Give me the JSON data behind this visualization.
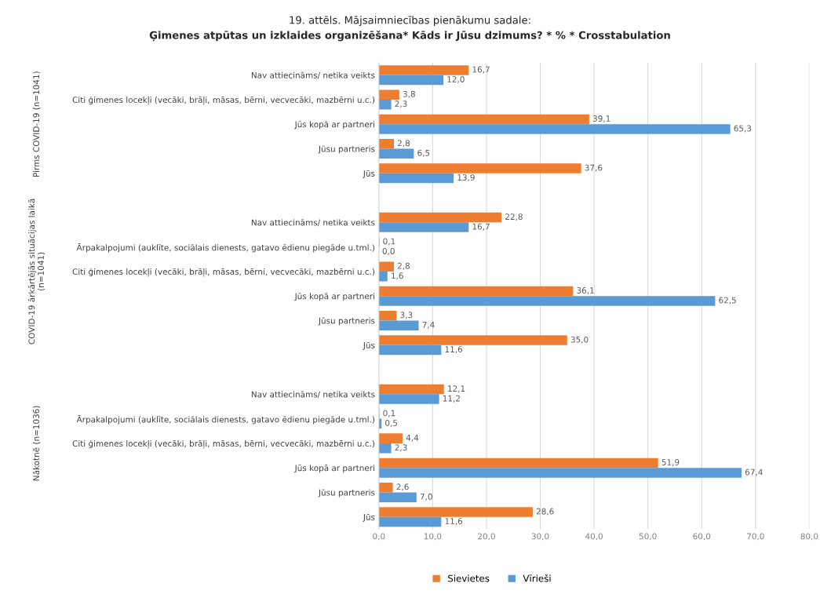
{
  "chart_data": {
    "type": "bar",
    "orientation": "horizontal",
    "title": "19. attēls. Mājsaimniecības pienākumu sadale:",
    "subtitle": "Ģimenes atpūtas un izklaides organizēšana* Kāds ir Jūsu dzimums? * % * Crosstabulation",
    "categories": [
      "Nav attiecināms/ netika veikts",
      "Citi ģimenes locekļi (vecāki, brāļi, māsas, bērni, vecvecāki, mazbērni u.c.)",
      "Jūs kopā ar partneri",
      "Jūsu partneris",
      "Jūs",
      null,
      "Nav attiecināms/ netika veikts",
      "Ārpakalpojumi (auklīte, sociālais dienests, gatavo ēdienu piegāde u.tml.)",
      "Citi ģimenes locekļi (vecāki, brāļi, māsas, bērni, vecvecāki, mazbērni u.c.)",
      "Jūs kopā ar partneri",
      "Jūsu partneris",
      "Jūs",
      null,
      "Nav attiecināms/ netika veikts",
      "Ārpakalpojumi (auklīte, sociālais dienests, gatavo ēdienu piegāde u.tml.)",
      "Citi ģimenes locekļi (vecāki, brāļi, māsas, bērni, vecvecāki, mazbērni u.c.)",
      "Jūs kopā ar partneri",
      "Jūsu partneris",
      "Jūs"
    ],
    "series": [
      {
        "name": "Sievietes",
        "color": "#ed7d31",
        "values": [
          16.7,
          3.8,
          39.1,
          2.8,
          37.6,
          null,
          22.8,
          0.1,
          2.8,
          36.1,
          3.3,
          35.0,
          null,
          12.1,
          0.1,
          4.4,
          51.9,
          2.6,
          28.6
        ],
        "value_labels": [
          "16,7",
          "3,8",
          "39,1",
          "2,8",
          "37,6",
          null,
          "22,8",
          "0,1",
          "2,8",
          "36,1",
          "3,3",
          "35,0",
          null,
          "12,1",
          "0,1",
          "4,4",
          "51,9",
          "2,6",
          "28,6"
        ]
      },
      {
        "name": "Vīrieši",
        "color": "#5b9bd5",
        "values": [
          12.0,
          2.3,
          65.3,
          6.5,
          13.9,
          null,
          16.7,
          0.0,
          1.6,
          62.5,
          7.4,
          11.6,
          null,
          11.2,
          0.5,
          2.3,
          67.4,
          7.0,
          11.6
        ],
        "value_labels": [
          "12,0",
          "2,3",
          "65,3",
          "6,5",
          "13,9",
          null,
          "16,7",
          "0,0",
          "1,6",
          "62,5",
          "7,4",
          "11,6",
          null,
          "11,2",
          "0,5",
          "2,3",
          "67,4",
          "7,0",
          "11,6"
        ]
      }
    ],
    "annotations": [
      "Pirms COVID-19 (n=1041)",
      "COVID-19 ārkārtējās situācijas laikā\n(n=1041)",
      "Nākotnē (n=1036)"
    ],
    "xlim": [
      0,
      80
    ],
    "xticks": [
      {
        "value": 0,
        "label": "0,0"
      },
      {
        "value": 10,
        "label": "10,0"
      },
      {
        "value": 20,
        "label": "20,0"
      },
      {
        "value": 30,
        "label": "30,0"
      },
      {
        "value": 40,
        "label": "40,0"
      },
      {
        "value": 50,
        "label": "50,0"
      },
      {
        "value": 60,
        "label": "60,0"
      },
      {
        "value": 70,
        "label": "70,0"
      },
      {
        "value": 80,
        "label": "80,0"
      }
    ],
    "grid": "x",
    "legend": "bottom"
  }
}
